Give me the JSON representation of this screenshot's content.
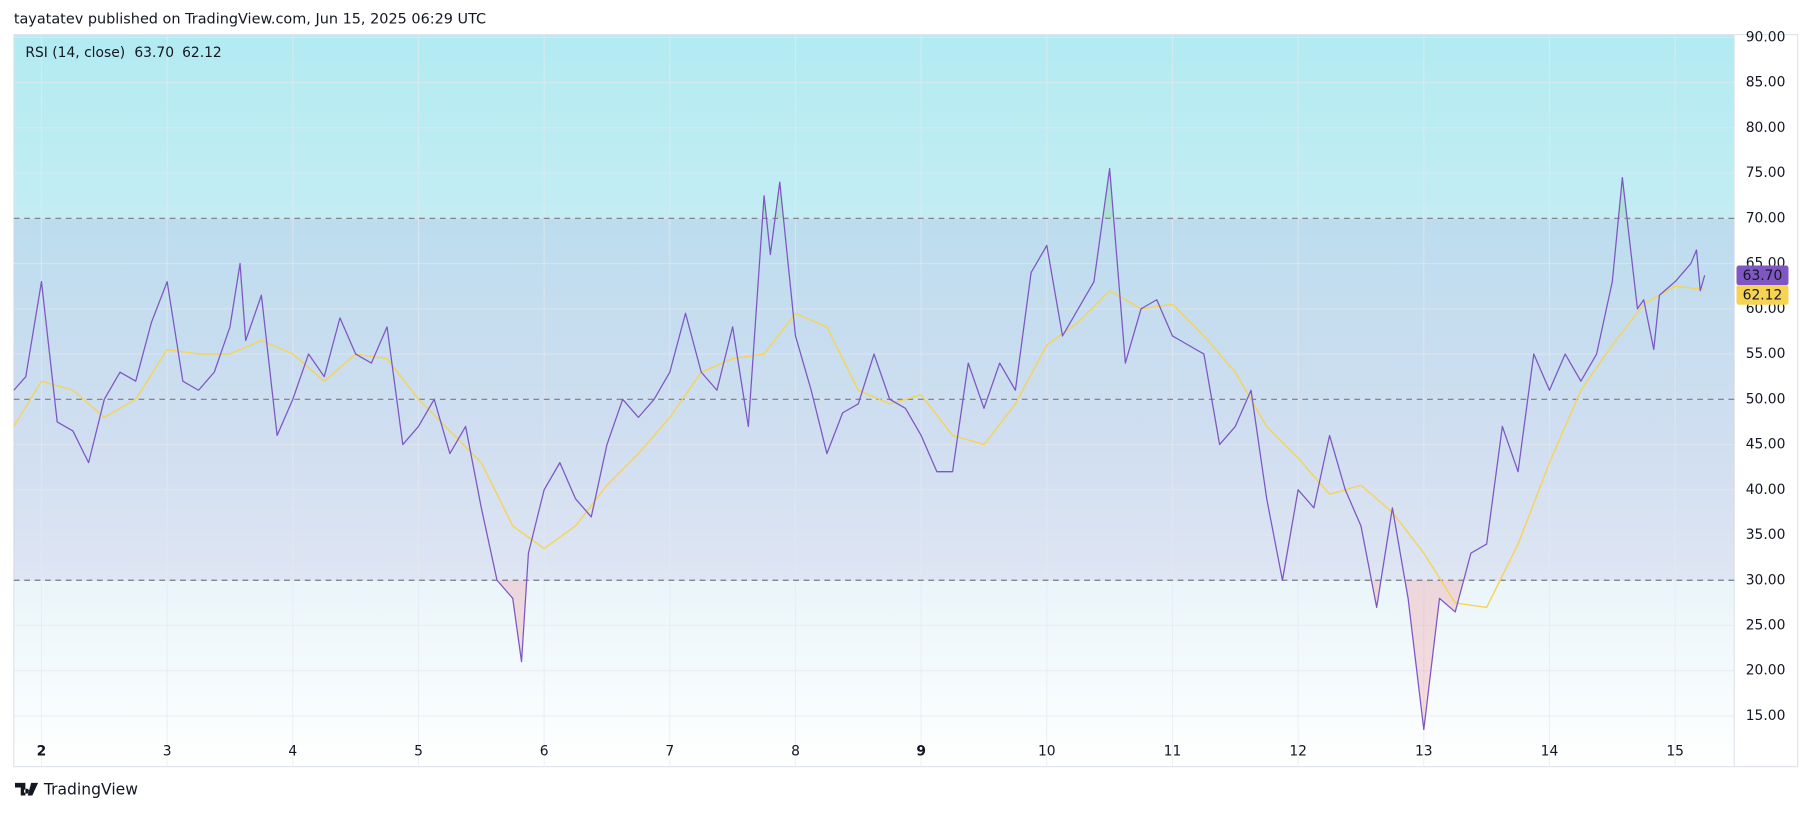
{
  "chart_data": {
    "type": "line",
    "header": "tayatatev published on TradingView.com, Jun 15, 2025 06:29 UTC",
    "indicator": "RSI (14, close)",
    "footer": "TradingView",
    "xlim": [
      1.78,
      15.47
    ],
    "ylim": [
      9.4,
      90.3
    ],
    "xticks": [
      2,
      3,
      4,
      5,
      6,
      7,
      8,
      9,
      10,
      11,
      12,
      13,
      14,
      15
    ],
    "emphasized_xticks": [
      2,
      9
    ],
    "yticks": [
      {
        "value": 90,
        "label": "90.00"
      },
      {
        "value": 85,
        "label": "85.00"
      },
      {
        "value": 80,
        "label": "80.00"
      },
      {
        "value": 75,
        "label": "75.00"
      },
      {
        "value": 70,
        "label": "70.00"
      },
      {
        "value": 65,
        "label": "65.00"
      },
      {
        "value": 60,
        "label": "60.00"
      },
      {
        "value": 55,
        "label": "55.00"
      },
      {
        "value": 50,
        "label": "50.00"
      },
      {
        "value": 45,
        "label": "45.00"
      },
      {
        "value": 40,
        "label": "40.00"
      },
      {
        "value": 35,
        "label": "35.00"
      },
      {
        "value": 30,
        "label": "30.00"
      },
      {
        "value": 25,
        "label": "25.00"
      },
      {
        "value": 20,
        "label": "20.00"
      },
      {
        "value": 15,
        "label": "15.00"
      }
    ],
    "bands": {
      "upper": 70,
      "middle": 50,
      "lower": 30
    },
    "grid": true,
    "series": [
      {
        "color": "#7e57c2",
        "last_label": "63.70",
        "x": [
          1.78,
          1.875,
          2,
          2.125,
          2.25,
          2.375,
          2.5,
          2.625,
          2.75,
          2.875,
          3,
          3.125,
          3.25,
          3.375,
          3.5,
          3.58,
          3.625,
          3.75,
          3.875,
          4,
          4.125,
          4.25,
          4.375,
          4.5,
          4.625,
          4.75,
          4.875,
          5,
          5.125,
          5.25,
          5.375,
          5.5,
          5.625,
          5.75,
          5.82,
          5.875,
          6,
          6.125,
          6.25,
          6.375,
          6.5,
          6.625,
          6.75,
          6.875,
          7,
          7.125,
          7.25,
          7.375,
          7.5,
          7.625,
          7.75,
          7.8,
          7.875,
          8,
          8.125,
          8.25,
          8.375,
          8.5,
          8.625,
          8.75,
          8.875,
          9,
          9.125,
          9.25,
          9.375,
          9.5,
          9.625,
          9.75,
          9.875,
          10,
          10.125,
          10.25,
          10.375,
          10.5,
          10.625,
          10.75,
          10.875,
          11,
          11.125,
          11.25,
          11.375,
          11.5,
          11.625,
          11.75,
          11.875,
          12,
          12.125,
          12.25,
          12.375,
          12.5,
          12.625,
          12.75,
          12.875,
          13,
          13.125,
          13.25,
          13.375,
          13.5,
          13.625,
          13.75,
          13.875,
          14,
          14.125,
          14.25,
          14.375,
          14.5,
          14.58,
          14.7,
          14.75,
          14.83,
          14.875,
          15,
          15.125,
          15.17,
          15.2,
          15.235
        ],
        "values": [
          51,
          52.5,
          63,
          47.5,
          46.5,
          43,
          50,
          53,
          52,
          58.5,
          63,
          52,
          51,
          53,
          58,
          65,
          56.5,
          61.5,
          46,
          50,
          55,
          52.5,
          59,
          55,
          54,
          58,
          45,
          47,
          50,
          44,
          47,
          38,
          30,
          28,
          21,
          33,
          40,
          43,
          39,
          37,
          45,
          50,
          48,
          50,
          53,
          59.5,
          53,
          51,
          58,
          47,
          72.5,
          66,
          74,
          57,
          51,
          44,
          48.5,
          49.5,
          55,
          50,
          49,
          46,
          42,
          42,
          54,
          49,
          54,
          51,
          64,
          67,
          57,
          60,
          63,
          75.5,
          54,
          60,
          61,
          57,
          56,
          55,
          45,
          47,
          51,
          39,
          30,
          40,
          38,
          46,
          40,
          36,
          27,
          38,
          28,
          13.5,
          28,
          26.5,
          33,
          34,
          47,
          42,
          55,
          51,
          55,
          52,
          55,
          63,
          74.5,
          60,
          61,
          55.5,
          61.5,
          63,
          65,
          66.5,
          62,
          63.7
        ]
      },
      {
        "color": "#f7d354",
        "last_label": "62.12",
        "x": [
          1.78,
          2,
          2.25,
          2.5,
          2.75,
          3,
          3.25,
          3.5,
          3.75,
          4,
          4.25,
          4.5,
          4.75,
          5,
          5.25,
          5.5,
          5.75,
          6,
          6.25,
          6.5,
          6.75,
          7,
          7.25,
          7.5,
          7.75,
          8,
          8.25,
          8.5,
          8.75,
          9,
          9.25,
          9.5,
          9.75,
          10,
          10.25,
          10.5,
          10.75,
          11,
          11.25,
          11.5,
          11.75,
          12,
          12.25,
          12.5,
          12.75,
          13,
          13.25,
          13.5,
          13.75,
          14,
          14.25,
          14.5,
          14.75,
          15,
          15.235
        ],
        "values": [
          47,
          52,
          51,
          48,
          50,
          55.5,
          55,
          55,
          56.5,
          55,
          52,
          55,
          54.5,
          50,
          46.5,
          43,
          36,
          33.5,
          36,
          40.5,
          44,
          48,
          53,
          54.5,
          55,
          59.5,
          58,
          51,
          49.5,
          50.5,
          46,
          45,
          49.5,
          56,
          58.5,
          62,
          60,
          60.5,
          57,
          53,
          47,
          43.5,
          39.5,
          40.5,
          37.5,
          33,
          27.5,
          27,
          34,
          43,
          51,
          56,
          60.5,
          62.5,
          62.12
        ]
      }
    ]
  }
}
